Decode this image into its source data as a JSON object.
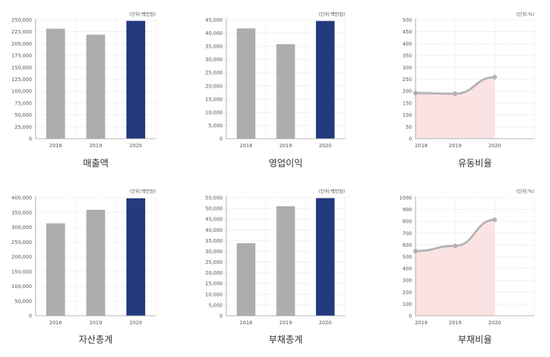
{
  "chart_data": [
    {
      "type": "bar",
      "title": "매출액",
      "unit": "(단위:백만원)",
      "categories": [
        "2018",
        "2019",
        "2020"
      ],
      "values": [
        231500,
        219000,
        248000
      ],
      "ylim": [
        0,
        250000
      ],
      "yticks": [
        "0",
        "25,000",
        "50,000",
        "75,000",
        "100,000",
        "125,000",
        "150,000",
        "175,000",
        "200,000",
        "225,000",
        "250,000"
      ],
      "colors": [
        "#adadad",
        "#adadad",
        "#243a7e"
      ]
    },
    {
      "type": "bar",
      "title": "영업이익",
      "unit": "(단위:백만원)",
      "categories": [
        "2018",
        "2019",
        "2020"
      ],
      "values": [
        41800,
        35800,
        44600
      ],
      "ylim": [
        0,
        45000
      ],
      "yticks": [
        "0",
        "5,000",
        "10,000",
        "15,000",
        "20,000",
        "25,000",
        "30,000",
        "35,000",
        "40,000",
        "45,000"
      ],
      "colors": [
        "#adadad",
        "#adadad",
        "#243a7e"
      ]
    },
    {
      "type": "area",
      "title": "유동비율",
      "unit": "(단위:%)",
      "categories": [
        "2018",
        "2019",
        "2020"
      ],
      "values": [
        192,
        189,
        259
      ],
      "ylim": [
        0,
        500
      ],
      "yticks": [
        "0",
        "50",
        "100",
        "150",
        "200",
        "250",
        "300",
        "350",
        "400",
        "450",
        "500"
      ],
      "colors": [
        "#b3b3b3",
        "#fbe3e3"
      ]
    },
    {
      "type": "bar",
      "title": "자산총계",
      "unit": "(단위:백만원)",
      "categories": [
        "2018",
        "2019",
        "2020"
      ],
      "values": [
        313000,
        359000,
        398000
      ],
      "ylim": [
        0,
        400000
      ],
      "yticks": [
        "0",
        "50,000",
        "100,000",
        "150,000",
        "200,000",
        "250,000",
        "300,000",
        "350,000",
        "400,000"
      ],
      "colors": [
        "#adadad",
        "#adadad",
        "#243a7e"
      ]
    },
    {
      "type": "bar",
      "title": "부채총계",
      "unit": "(단위:백만원)",
      "categories": [
        "2018",
        "2019",
        "2020"
      ],
      "values": [
        33800,
        51000,
        54800
      ],
      "ylim": [
        0,
        55000
      ],
      "yticks": [
        "0",
        "5,000",
        "10,000",
        "15,000",
        "20,000",
        "25,000",
        "30,000",
        "35,000",
        "40,000",
        "45,000",
        "50,000",
        "55,000"
      ],
      "colors": [
        "#adadad",
        "#adadad",
        "#243a7e"
      ]
    },
    {
      "type": "area",
      "title": "부채비율",
      "unit": "(단위:%)",
      "categories": [
        "2018",
        "2019",
        "2020"
      ],
      "values": [
        548,
        592,
        813
      ],
      "ylim": [
        0,
        1000
      ],
      "yticks": [
        "0",
        "100",
        "200",
        "300",
        "400",
        "500",
        "600",
        "700",
        "800",
        "900",
        "1000"
      ],
      "colors": [
        "#b3b3b3",
        "#fbe3e3"
      ]
    }
  ]
}
